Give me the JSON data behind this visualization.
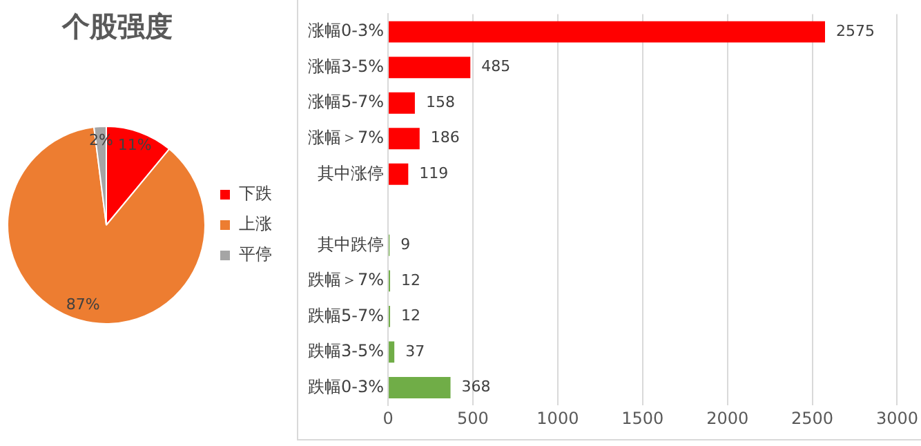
{
  "chart_data": [
    {
      "type": "pie",
      "title": "个股强度",
      "categories": [
        "下跌",
        "上涨",
        "平停"
      ],
      "values": [
        11,
        87,
        2
      ],
      "colors": [
        "#ff0000",
        "#ed7d31",
        "#a5a5a5"
      ],
      "value_labels": [
        "11%",
        "87%",
        "2%"
      ],
      "legend": "right"
    },
    {
      "type": "bar",
      "orientation": "horizontal",
      "categories": [
        "涨幅0-3%",
        "涨幅3-5%",
        "涨幅5-7%",
        "涨幅＞7%",
        "其中涨停",
        null,
        "其中跌停",
        "跌幅＞7%",
        "跌幅5-7%",
        "跌幅3-5%",
        "跌幅0-3%"
      ],
      "values": [
        2575,
        485,
        158,
        186,
        119,
        null,
        9,
        12,
        12,
        37,
        368
      ],
      "colors": [
        "#ff0000",
        "#ff0000",
        "#ff0000",
        "#ff0000",
        "#ff0000",
        null,
        "#70ad47",
        "#70ad47",
        "#70ad47",
        "#70ad47",
        "#70ad47"
      ],
      "xlim": [
        0,
        3000
      ],
      "xticks": [
        0,
        500,
        1000,
        1500,
        2000,
        2500,
        3000
      ],
      "grid": "x",
      "data_labels": true,
      "legend": false
    }
  ]
}
